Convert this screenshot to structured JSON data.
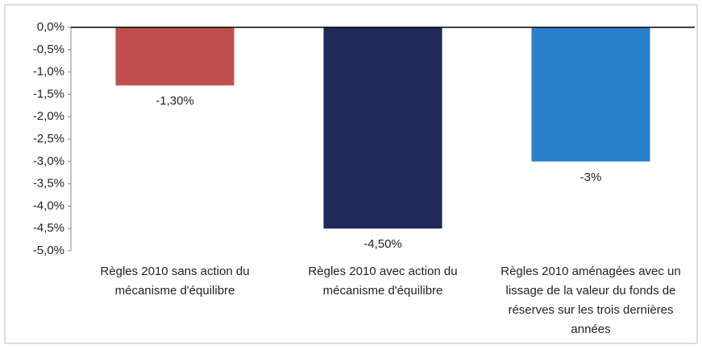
{
  "chart_data": {
    "type": "bar",
    "categories": [
      "Règles 2010 sans action du mécanisme d'équilibre",
      "Règles 2010 avec action du mécanisme d'équilibre",
      "Règles 2010 aménagées avec un lissage de la valeur du fonds de réserves sur les trois dernières années"
    ],
    "values": [
      -1.3,
      -4.5,
      -3
    ],
    "value_labels": [
      "-1,30%",
      "-4,50%",
      "-3%"
    ],
    "colors": [
      "#c0504d",
      "#1f2a5a",
      "#2a7fcc"
    ],
    "ylim": [
      -5,
      0
    ],
    "yticks": [
      {
        "value": 0,
        "label": "0,0%"
      },
      {
        "value": -0.5,
        "label": "-0,5%"
      },
      {
        "value": -1,
        "label": "-1,0%"
      },
      {
        "value": -1.5,
        "label": "-1,5%"
      },
      {
        "value": -2,
        "label": "-2,0%"
      },
      {
        "value": -2.5,
        "label": "-2,5%"
      },
      {
        "value": -3,
        "label": "-3,0%"
      },
      {
        "value": -3.5,
        "label": "-3,5%"
      },
      {
        "value": -4,
        "label": "-4,0%"
      },
      {
        "value": -4.5,
        "label": "-4,5%"
      },
      {
        "value": -5,
        "label": "-5,0%"
      }
    ],
    "grid": false
  }
}
